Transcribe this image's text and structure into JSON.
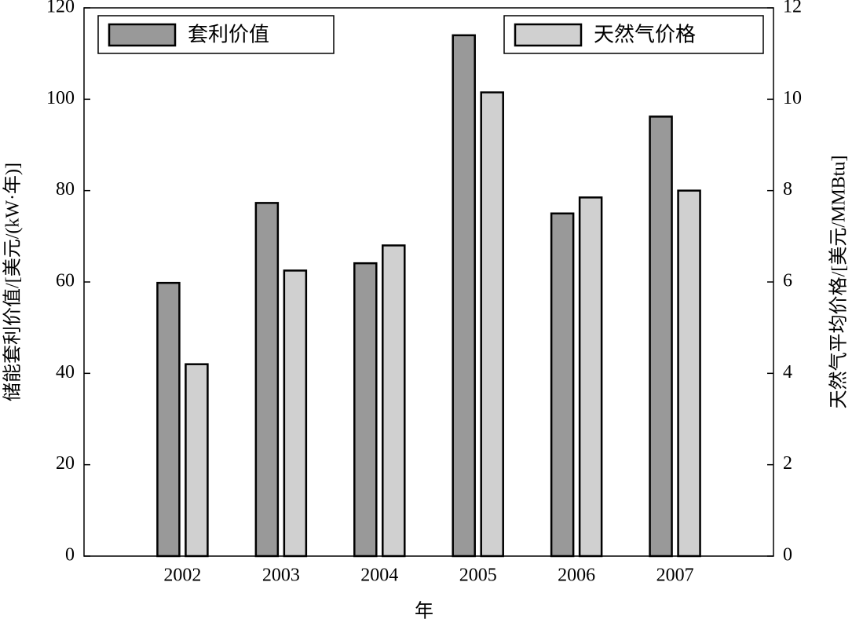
{
  "chart_data": {
    "type": "bar",
    "categories": [
      "2002",
      "2003",
      "2004",
      "2005",
      "2006",
      "2007"
    ],
    "series": [
      {
        "name": "套利价值",
        "color": "#999999",
        "values": [
          59.8,
          77.3,
          64.1,
          114,
          75,
          96.2
        ]
      },
      {
        "name": "天然气价格",
        "color": "#d0d0d0",
        "axis": "y2",
        "values": [
          4.2,
          6.25,
          6.8,
          10.15,
          7.85,
          8.0
        ]
      }
    ],
    "xlabel": "年",
    "ylabel": "储能套利价值/[美元/(kW·年)]",
    "y2label": "天然气平均价格/[美元/MMBtu]",
    "ylim": [
      0,
      120
    ],
    "yticks": [
      0,
      20,
      40,
      60,
      80,
      100,
      120
    ],
    "y2lim": [
      0,
      12
    ],
    "y2ticks": [
      0,
      2,
      4,
      6,
      8,
      10,
      12
    ],
    "grid": false
  }
}
